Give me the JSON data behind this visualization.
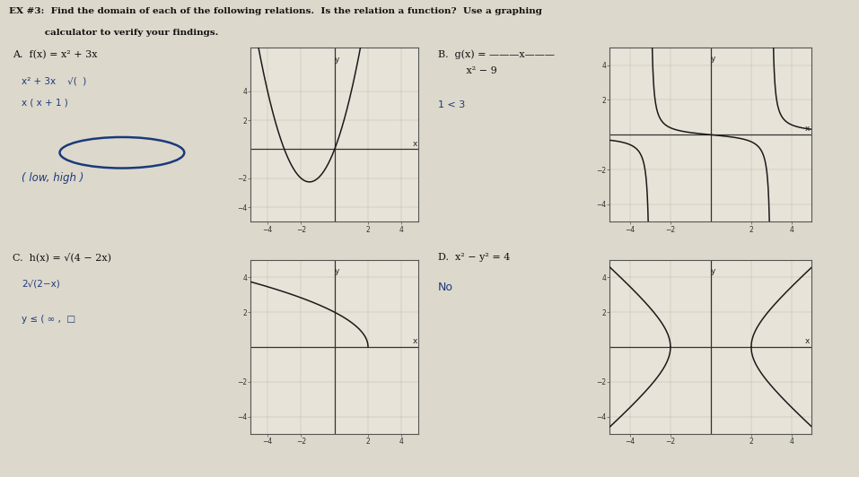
{
  "bg_color": "#ddd8cc",
  "grid_bg": "#e8e3d8",
  "title_line1": "EX #3:  Find the domain of each of the following relations.  Is the relation a function?  Use a graphing",
  "title_line2": "           calculator to verify your findings.",
  "label_A": "A.  f(x) = x² + 3x",
  "label_B": "B.  g(x) = ———x———",
  "label_B2": "         x² − 9",
  "label_C": "C.  h(x) = √(4 − 2x)",
  "label_D": "D.  x² − y² = 4",
  "note_A1": "x² + 3x    √(  )",
  "note_A2": "x ( x + 1 )",
  "note_A3": "( low, high )",
  "note_B1": "1 < 3",
  "note_C1": "2√(2−x)",
  "note_C2": "y ≤ ( ∞ ,  □",
  "note_D1": "No",
  "graph_line_color": "#1a1a1a",
  "graph_border_color": "#555555",
  "grid_color": "#bbbbaa",
  "axis_color": "#333333",
  "text_color_print": "#111111",
  "text_color_hand": "#1a3a7a",
  "ellipse_color": "#1a3a7a",
  "xlim": [
    -5,
    5
  ],
  "ylim": [
    -5,
    5
  ],
  "ticks": [
    -4,
    -2,
    2,
    4
  ],
  "tick_fontsize": 5.5
}
